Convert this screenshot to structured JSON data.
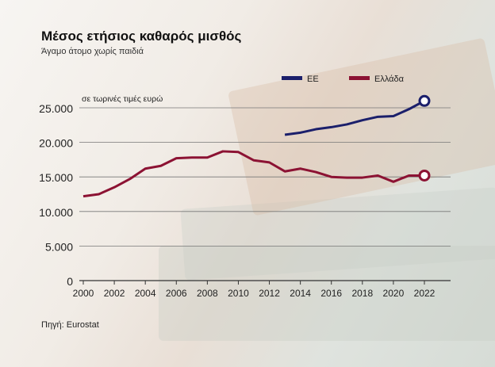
{
  "chart_data": {
    "type": "line",
    "title": "Μέσος ετήσιος καθαρός μισθός",
    "subtitle": "Άγαμο άτομο χωρίς παιδιά",
    "ylabel": "σε τωρινές τιμές ευρώ",
    "xlabel": "",
    "source": "Πηγή: Eurostat",
    "ylim": [
      0,
      25000
    ],
    "xlim": [
      2000,
      2022
    ],
    "grid": true,
    "legend_position": "top-right",
    "yticks": [
      0,
      5000,
      10000,
      15000,
      20000,
      25000
    ],
    "ytick_labels": [
      "0",
      "5.000",
      "10.000",
      "15.000",
      "20.000",
      "25.000"
    ],
    "xtick_labels": [
      "2000",
      "2002",
      "2004",
      "2006",
      "2008",
      "2010",
      "2012",
      "2014",
      "2016",
      "2018",
      "2020",
      "2022"
    ],
    "series": [
      {
        "name": "ΕΕ",
        "color": "#1b1f6b",
        "x": [
          2013,
          2014,
          2015,
          2016,
          2017,
          2018,
          2019,
          2020,
          2021,
          2022
        ],
        "values": [
          21100,
          21400,
          21900,
          22200,
          22600,
          23200,
          23700,
          23800,
          24800,
          26000
        ]
      },
      {
        "name": "Ελλάδα",
        "color": "#8c1233",
        "x": [
          2000,
          2001,
          2002,
          2003,
          2004,
          2005,
          2006,
          2007,
          2008,
          2009,
          2010,
          2011,
          2012,
          2013,
          2014,
          2015,
          2016,
          2017,
          2018,
          2019,
          2020,
          2021,
          2022
        ],
        "values": [
          12200,
          12500,
          13500,
          14700,
          16200,
          16600,
          17700,
          17800,
          17800,
          18700,
          18600,
          17400,
          17100,
          15800,
          16200,
          15700,
          15000,
          14900,
          14900,
          15200,
          14300,
          15200,
          15200
        ]
      }
    ]
  }
}
